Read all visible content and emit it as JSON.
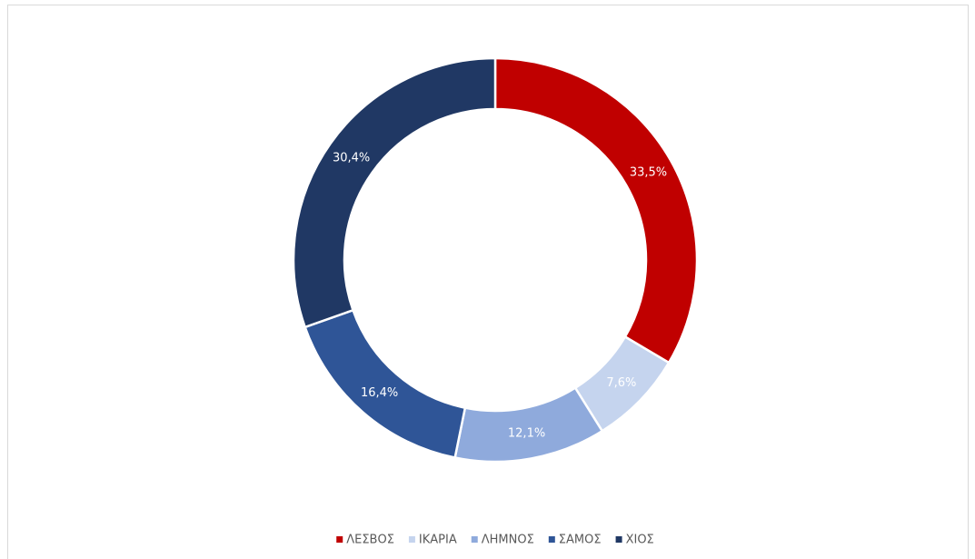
{
  "chart_data": {
    "type": "donut",
    "categories": [
      "ΛΕΣΒΟΣ",
      "ΙΚΑΡΙΑ",
      "ΛΗΜΝΟΣ",
      "ΣΑΜΟΣ",
      "ΧΙΟΣ"
    ],
    "values": [
      33.5,
      7.6,
      12.1,
      16.4,
      30.4
    ],
    "value_labels": [
      "33,5%",
      "7,6%",
      "12,1%",
      "16,4%",
      "30,4%"
    ],
    "colors": [
      "#c00000",
      "#c5d4ee",
      "#8faadc",
      "#2f5597",
      "#203864"
    ],
    "legend": "bottom"
  }
}
